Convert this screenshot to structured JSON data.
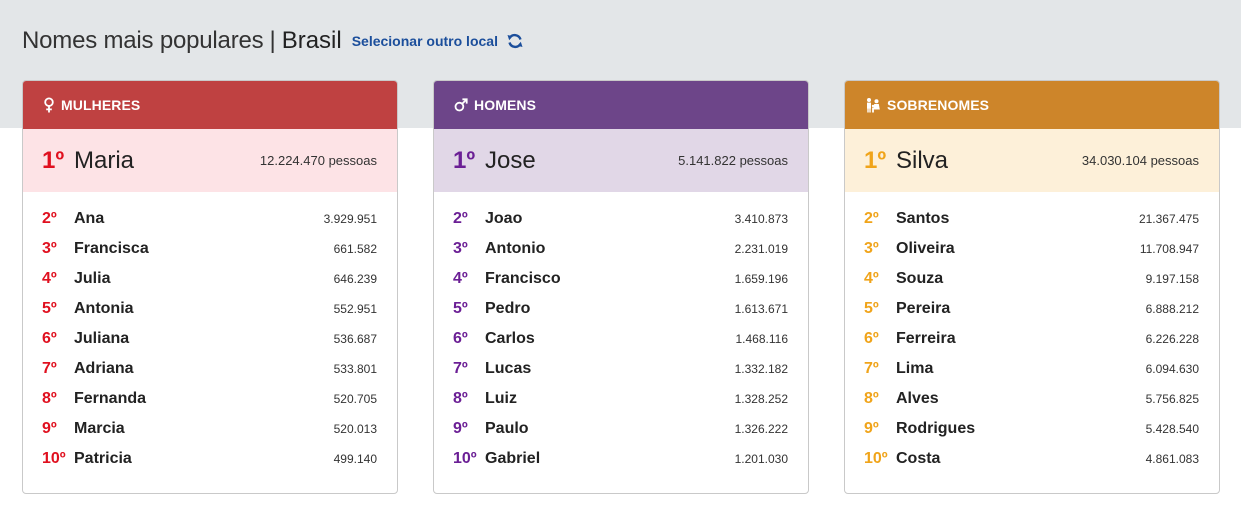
{
  "header": {
    "title": "Nomes mais populares",
    "separator": "|",
    "place": "Brasil",
    "change_link": "Selecionar outro local",
    "refresh_icon": "refresh-icon"
  },
  "colors": {
    "women_accent": "#bf4141",
    "women_rank": "#e0101f",
    "women_highlight": "#fde3e6",
    "men_accent": "#6d4589",
    "men_rank": "#6b1f95",
    "men_highlight": "#e1d7e7",
    "surnames_accent": "#cd852a",
    "surnames_rank": "#f0a41a",
    "surnames_highlight": "#fdf0d9"
  },
  "cards": [
    {
      "title": "MULHERES",
      "icon": "female-symbol-icon",
      "top": {
        "rank": "1º",
        "name": "Maria",
        "count": "12.224.470 pessoas"
      },
      "items": [
        {
          "rank": "2º",
          "name": "Ana",
          "count": "3.929.951"
        },
        {
          "rank": "3º",
          "name": "Francisca",
          "count": "661.582"
        },
        {
          "rank": "4º",
          "name": "Julia",
          "count": "646.239"
        },
        {
          "rank": "5º",
          "name": "Antonia",
          "count": "552.951"
        },
        {
          "rank": "6º",
          "name": "Juliana",
          "count": "536.687"
        },
        {
          "rank": "7º",
          "name": "Adriana",
          "count": "533.801"
        },
        {
          "rank": "8º",
          "name": "Fernanda",
          "count": "520.705"
        },
        {
          "rank": "9º",
          "name": "Marcia",
          "count": "520.013"
        },
        {
          "rank": "10º",
          "name": "Patricia",
          "count": "499.140"
        }
      ]
    },
    {
      "title": "HOMENS",
      "icon": "male-symbol-icon",
      "top": {
        "rank": "1º",
        "name": "Jose",
        "count": "5.141.822 pessoas"
      },
      "items": [
        {
          "rank": "2º",
          "name": "Joao",
          "count": "3.410.873"
        },
        {
          "rank": "3º",
          "name": "Antonio",
          "count": "2.231.019"
        },
        {
          "rank": "4º",
          "name": "Francisco",
          "count": "1.659.196"
        },
        {
          "rank": "5º",
          "name": "Pedro",
          "count": "1.613.671"
        },
        {
          "rank": "6º",
          "name": "Carlos",
          "count": "1.468.116"
        },
        {
          "rank": "7º",
          "name": "Lucas",
          "count": "1.332.182"
        },
        {
          "rank": "8º",
          "name": "Luiz",
          "count": "1.328.252"
        },
        {
          "rank": "9º",
          "name": "Paulo",
          "count": "1.326.222"
        },
        {
          "rank": "10º",
          "name": "Gabriel",
          "count": "1.201.030"
        }
      ]
    },
    {
      "title": "SOBRENOMES",
      "icon": "family-icon",
      "top": {
        "rank": "1º",
        "name": "Silva",
        "count": "34.030.104 pessoas"
      },
      "items": [
        {
          "rank": "2º",
          "name": "Santos",
          "count": "21.367.475"
        },
        {
          "rank": "3º",
          "name": "Oliveira",
          "count": "11.708.947"
        },
        {
          "rank": "4º",
          "name": "Souza",
          "count": "9.197.158"
        },
        {
          "rank": "5º",
          "name": "Pereira",
          "count": "6.888.212"
        },
        {
          "rank": "6º",
          "name": "Ferreira",
          "count": "6.226.228"
        },
        {
          "rank": "7º",
          "name": "Lima",
          "count": "6.094.630"
        },
        {
          "rank": "8º",
          "name": "Alves",
          "count": "5.756.825"
        },
        {
          "rank": "9º",
          "name": "Rodrigues",
          "count": "5.428.540"
        },
        {
          "rank": "10º",
          "name": "Costa",
          "count": "4.861.083"
        }
      ]
    }
  ]
}
